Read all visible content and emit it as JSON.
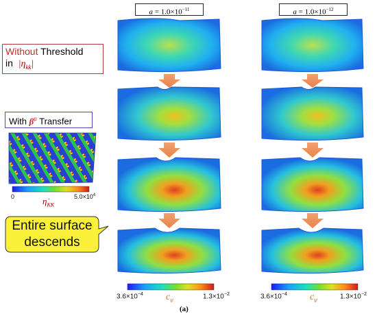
{
  "columns": [
    {
      "prefix": "a",
      "eq": " = ",
      "value": "1.0×10",
      "exp": "−11"
    },
    {
      "prefix": "a",
      "eq": " = ",
      "value": "1.0×10",
      "exp": "−12"
    }
  ],
  "legend_left": {
    "without_word": "Without",
    "threshold_word": " Threshold",
    "in_word": "in",
    "eta_symbol": "|η",
    "eta_sub": "kk",
    "eta_close": "|"
  },
  "legend_with": {
    "with_word": "With ",
    "beta_symbol": "β",
    "beta_sup": "p",
    "transfer_word": " Transfer"
  },
  "inset_colorbar": {
    "min": "0",
    "max": "5.0×10",
    "max_exp": "4",
    "label": "η̇",
    "label_sub": "KK"
  },
  "callout": {
    "line1": "Entire surface",
    "line2": "descends"
  },
  "bottom_colorbar": {
    "min": "3.6×10",
    "min_exp": "−4",
    "max": "1.3×10",
    "max_exp": "−2",
    "label": "c",
    "label_sub": "v"
  },
  "caption": "(a)"
}
